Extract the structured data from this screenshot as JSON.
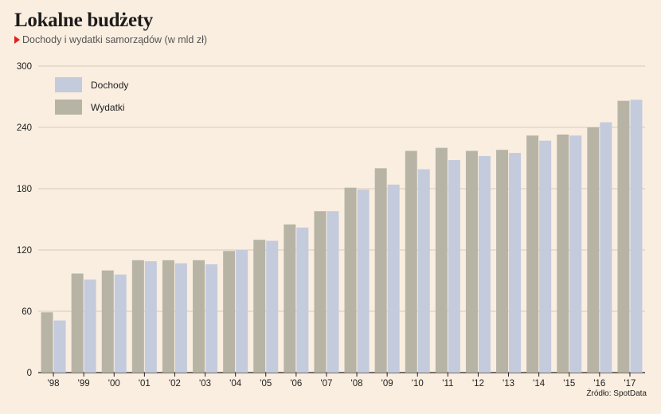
{
  "title": "Lokalne budżety",
  "subtitle": "Dochody i wydatki samorządów (w mld zł)",
  "source": "Źródło: SpotData",
  "colors": {
    "background": "#faeee0",
    "dochody": "#c4cbdc",
    "wydatki": "#b7b4a6",
    "marker": "#e02020"
  },
  "chart_data": {
    "type": "bar",
    "title": "Lokalne budżety",
    "subtitle": "Dochody i wydatki samorządów (w mld zł)",
    "categories": [
      "'98",
      "'99",
      "'00",
      "'01",
      "'02",
      "'03",
      "'04",
      "'05",
      "'06",
      "'07",
      "'08",
      "'09",
      "'10",
      "'11",
      "'12",
      "'13",
      "'14",
      "'15",
      "'16",
      "'17"
    ],
    "series": [
      {
        "name": "Wydatki",
        "color": "#b7b4a6",
        "values": [
          59,
          97,
          100,
          110,
          110,
          110,
          119,
          130,
          145,
          158,
          181,
          200,
          217,
          220,
          217,
          218,
          232,
          233,
          240,
          266
        ]
      },
      {
        "name": "Dochody",
        "color": "#c4cbdc",
        "values": [
          51,
          91,
          96,
          109,
          107,
          106,
          120,
          129,
          142,
          158,
          179,
          184,
          199,
          208,
          212,
          215,
          227,
          232,
          245,
          267
        ]
      }
    ],
    "yticks": [
      0,
      60,
      120,
      180,
      240,
      300
    ],
    "ylim": [
      0,
      300
    ],
    "legend_order": [
      "Dochody",
      "Wydatki"
    ],
    "legend_position": "top-left",
    "grid": true,
    "xlabel": "",
    "ylabel": ""
  }
}
